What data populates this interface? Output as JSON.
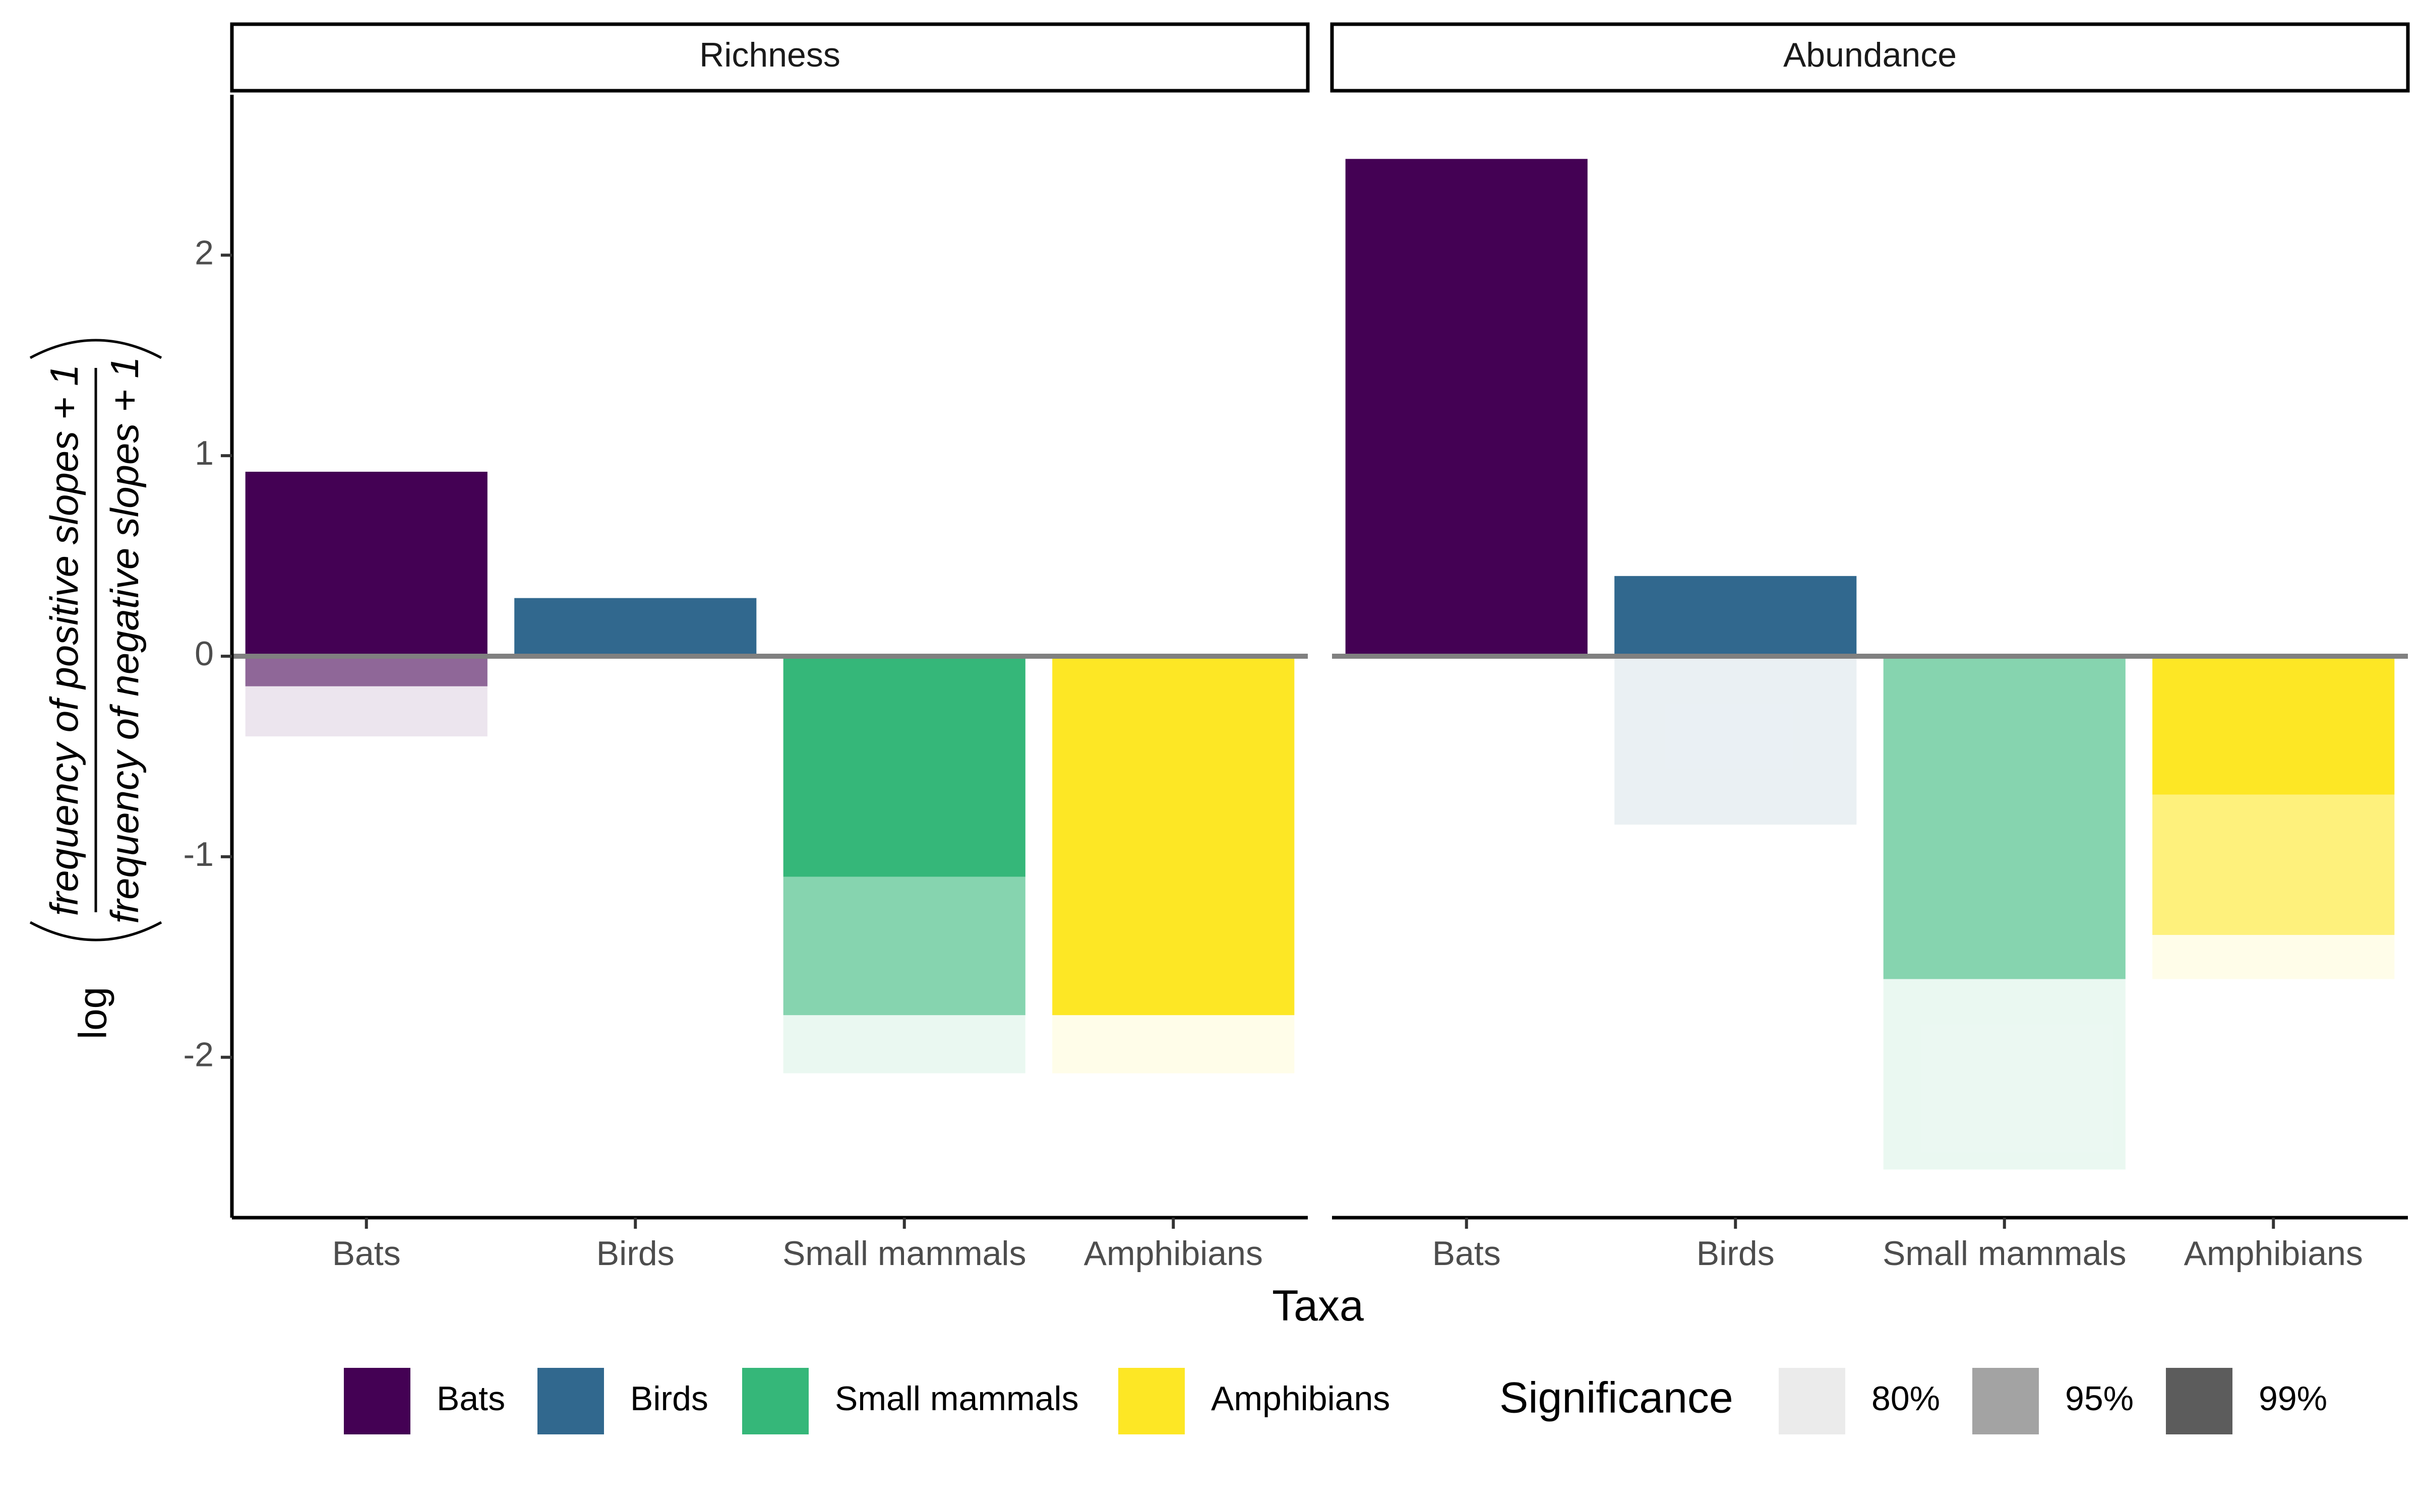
{
  "chart_data": {
    "type": "bar",
    "xlabel": "Taxa",
    "ylabel": {
      "prefix": "log",
      "numerator": "frequency of positive slopes + 1",
      "denominator": "frequency of negative slopes + 1"
    },
    "ylim": [
      -2.8,
      2.8
    ],
    "yticks": [
      -2,
      -1,
      0,
      1,
      2
    ],
    "ytick_labels": [
      "-2",
      "-1",
      "0",
      "1",
      "2"
    ],
    "categories": [
      "Bats",
      "Birds",
      "Small mammals",
      "Amphibians"
    ],
    "colors": {
      "Bats": "#440154",
      "Birds": "#31688e",
      "Small mammals": "#35b779",
      "Amphibians": "#fde725"
    },
    "significance_opacity": {
      "80%": 0.1,
      "95%": 0.6,
      "99%": 1.0
    },
    "panels": [
      {
        "name": "Richness",
        "bars": [
          {
            "taxon": "Bats",
            "level": "99%",
            "from": 0,
            "to": 0.92
          },
          {
            "taxon": "Bats",
            "level": "95%",
            "from": 0,
            "to": -0.15
          },
          {
            "taxon": "Bats",
            "level": "80%",
            "from": -0.15,
            "to": -0.4
          },
          {
            "taxon": "Birds",
            "level": "99%",
            "from": 0,
            "to": 0.29
          },
          {
            "taxon": "Small mammals",
            "level": "99%",
            "from": 0,
            "to": -1.1
          },
          {
            "taxon": "Small mammals",
            "level": "95%",
            "from": -1.1,
            "to": -1.79
          },
          {
            "taxon": "Small mammals",
            "level": "80%",
            "from": -1.79,
            "to": -2.08
          },
          {
            "taxon": "Amphibians",
            "level": "99%",
            "from": 0,
            "to": -1.79
          },
          {
            "taxon": "Amphibians",
            "level": "80%",
            "from": -1.79,
            "to": -2.08
          }
        ]
      },
      {
        "name": "Abundance",
        "bars": [
          {
            "taxon": "Bats",
            "level": "99%",
            "from": 0,
            "to": 2.48
          },
          {
            "taxon": "Birds",
            "level": "99%",
            "from": 0,
            "to": 0.4
          },
          {
            "taxon": "Birds",
            "level": "80%",
            "from": 0,
            "to": -0.84
          },
          {
            "taxon": "Small mammals",
            "level": "95%",
            "from": 0,
            "to": -1.61
          },
          {
            "taxon": "Small mammals",
            "level": "80%",
            "from": -1.61,
            "to": -2.56
          },
          {
            "taxon": "Amphibians",
            "level": "99%",
            "from": 0,
            "to": -0.69
          },
          {
            "taxon": "Amphibians",
            "level": "95%",
            "from": -0.69,
            "to": -1.39
          },
          {
            "taxon": "Amphibians",
            "level": "80%",
            "from": -1.39,
            "to": -1.61
          }
        ]
      }
    ],
    "legend": {
      "taxa": [
        "Bats",
        "Birds",
        "Small mammals",
        "Amphibians"
      ],
      "significance_title": "Significance",
      "significance": [
        {
          "label": "80%",
          "color": "#ebebeb"
        },
        {
          "label": "95%",
          "color": "#a3a3a3"
        },
        {
          "label": "99%",
          "color": "#5c5c5c"
        }
      ]
    }
  }
}
